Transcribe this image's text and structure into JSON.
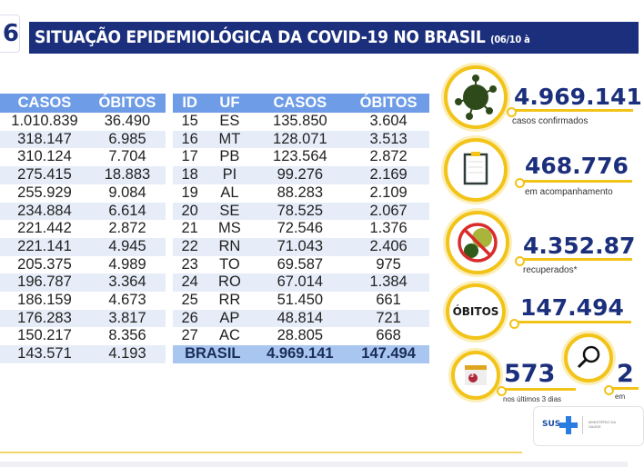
{
  "header": {
    "slide_number": "6",
    "title": "SITUAÇÃO EPIDEMIOLÓGICA DA COVID-19 NO BRASIL",
    "date": "(06/10 à"
  },
  "left_table": {
    "headers": [
      "CASOS",
      "ÓBITOS"
    ],
    "rows": [
      [
        "1.010.839",
        "36.490"
      ],
      [
        "318.147",
        "6.985"
      ],
      [
        "310.124",
        "7.704"
      ],
      [
        "275.415",
        "18.883"
      ],
      [
        "255.929",
        "9.084"
      ],
      [
        "234.884",
        "6.614"
      ],
      [
        "221.442",
        "2.872"
      ],
      [
        "221.141",
        "4.945"
      ],
      [
        "205.375",
        "4.989"
      ],
      [
        "196.787",
        "3.364"
      ],
      [
        "186.159",
        "4.673"
      ],
      [
        "176.283",
        "3.817"
      ],
      [
        "150.217",
        "8.356"
      ],
      [
        "143.571",
        "4.193"
      ]
    ]
  },
  "right_table": {
    "headers": [
      "ID",
      "UF",
      "CASOS",
      "ÓBITOS"
    ],
    "rows": [
      [
        "15",
        "ES",
        "135.850",
        "3.604"
      ],
      [
        "16",
        "MT",
        "128.071",
        "3.513"
      ],
      [
        "17",
        "PB",
        "123.564",
        "2.872"
      ],
      [
        "18",
        "PI",
        "99.276",
        "2.169"
      ],
      [
        "19",
        "AL",
        "88.283",
        "2.109"
      ],
      [
        "20",
        "SE",
        "78.525",
        "2.067"
      ],
      [
        "21",
        "MS",
        "72.546",
        "1.376"
      ],
      [
        "22",
        "RN",
        "71.043",
        "2.406"
      ],
      [
        "23",
        "TO",
        "69.587",
        "975"
      ],
      [
        "24",
        "RO",
        "67.014",
        "1.384"
      ],
      [
        "25",
        "RR",
        "51.450",
        "661"
      ],
      [
        "26",
        "AP",
        "48.814",
        "721"
      ],
      [
        "27",
        "AC",
        "28.805",
        "668"
      ]
    ],
    "total": {
      "label": "BRASIL",
      "casos": "4.969.141",
      "obitos": "147.494"
    }
  },
  "stats": {
    "confirmed": {
      "value": "4.969.141",
      "label": "casos confirmados",
      "icon": "virus-icon"
    },
    "monitoring": {
      "value": "468.776",
      "label": "em acompanhamento",
      "icon": "clipboard-icon"
    },
    "recovered": {
      "value": "4.352.87",
      "label": "recuperados*",
      "icon": "no-virus-icon"
    },
    "deaths": {
      "value": "147.494",
      "label": "ÓBITOS"
    },
    "last3": {
      "value": "573",
      "label": "nos últimos 3 dias",
      "badge": "3",
      "icon": "calendar-icon"
    },
    "investigation": {
      "value": "2",
      "label": "em",
      "icon": "magnifier-icon"
    }
  },
  "logo": {
    "sus": "SUS",
    "ministry": "MINISTÉRIO DA SAÚDE"
  },
  "colors": {
    "navy": "#1b2f7c",
    "yellow": "#f2c318",
    "header_blue": "#6e9ce6",
    "row_blue": "#e6edf9"
  }
}
